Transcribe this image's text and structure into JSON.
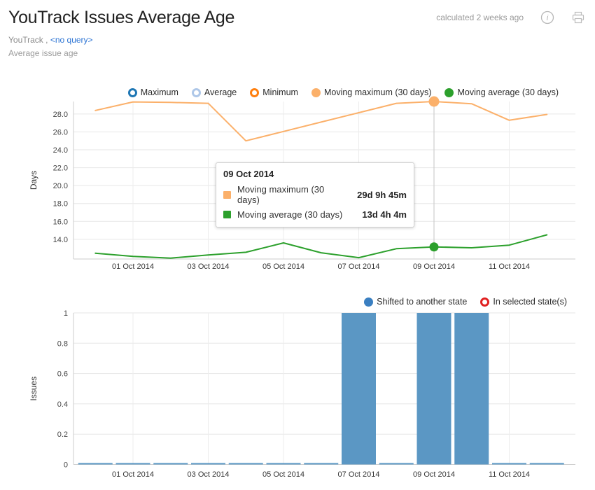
{
  "header": {
    "title": "YouTrack Issues Average Age",
    "calculated": "calculated 2 weeks ago",
    "icons": [
      "info-icon",
      "print-icon"
    ]
  },
  "subtitle": {
    "source": "YouTrack ,",
    "query_link": "<no query>",
    "description": "Average issue age"
  },
  "tooltip": {
    "title": "09 Oct 2014",
    "rows": [
      {
        "label": "Moving maximum (30 days)",
        "value": "29d 9h 45m",
        "color": "#fbb06a"
      },
      {
        "label": "Moving average (30 days)",
        "value": "13d 4h 4m",
        "color": "#2ca02c"
      }
    ]
  },
  "colors": {
    "maximum": "#1f77b4",
    "average": "#aec7e8",
    "minimum": "#ff7f0e",
    "moving_maximum": "#fbb06a",
    "moving_average": "#2ca02c",
    "bar_blue": "#5b97c4",
    "legend_blue": "#3a7fc1",
    "selected_red": "#e02020",
    "grid": "#e6e6e6",
    "axis": "#cccccc"
  },
  "chart_data": [
    {
      "type": "line",
      "title": "",
      "xlabel": "",
      "ylabel": "Days",
      "ylim": [
        11.8,
        29.4
      ],
      "yticks": [
        14,
        16,
        18,
        20,
        22,
        24,
        26,
        28
      ],
      "grid": true,
      "legend_position": "top",
      "x": [
        "30 Sep 2014",
        "01 Oct 2014",
        "02 Oct 2014",
        "03 Oct 2014",
        "04 Oct 2014",
        "05 Oct 2014",
        "06 Oct 2014",
        "07 Oct 2014",
        "08 Oct 2014",
        "09 Oct 2014",
        "10 Oct 2014",
        "11 Oct 2014",
        "12 Oct 2014"
      ],
      "x_tick_indices": [
        1,
        3,
        5,
        7,
        9,
        11
      ],
      "x_tick_labels": [
        "01 Oct 2014",
        "03 Oct 2014",
        "05 Oct 2014",
        "07 Oct 2014",
        "09 Oct 2014",
        "11 Oct 2014"
      ],
      "legend": [
        {
          "label": "Maximum",
          "marker": "ring",
          "color": "#1f77b4"
        },
        {
          "label": "Average",
          "marker": "ring",
          "color": "#aec7e8"
        },
        {
          "label": "Minimum",
          "marker": "ring",
          "color": "#ff7f0e"
        },
        {
          "label": "Moving maximum (30 days)",
          "marker": "dot",
          "color": "#fbb06a"
        },
        {
          "label": "Moving average (30 days)",
          "marker": "dot",
          "color": "#2ca02c"
        }
      ],
      "series": [
        {
          "name": "Moving maximum (30 days)",
          "color": "#fbb06a",
          "values": [
            28.4,
            29.35,
            29.3,
            29.2,
            25.0,
            26.05,
            27.1,
            28.15,
            29.2,
            29.4,
            29.15,
            27.3,
            27.95
          ]
        },
        {
          "name": "Moving average (30 days)",
          "color": "#2ca02c",
          "values": [
            12.45,
            12.1,
            11.9,
            12.25,
            12.55,
            13.6,
            12.5,
            11.95,
            12.95,
            13.15,
            13.05,
            13.35,
            14.5
          ]
        }
      ],
      "highlight": {
        "index": 9,
        "date": "09 Oct 2014",
        "values": {
          "Moving maximum (30 days)": "29d 9h 45m",
          "Moving average (30 days)": "13d 4h 4m"
        }
      }
    },
    {
      "type": "bar",
      "title": "",
      "xlabel": "",
      "ylabel": "Issues",
      "ylim": [
        0,
        1
      ],
      "yticks": [
        0,
        0.2,
        0.4,
        0.6,
        0.8,
        1
      ],
      "grid": true,
      "legend_position": "top-right",
      "x": [
        "30 Sep 2014",
        "01 Oct 2014",
        "02 Oct 2014",
        "03 Oct 2014",
        "04 Oct 2014",
        "05 Oct 2014",
        "06 Oct 2014",
        "07 Oct 2014",
        "08 Oct 2014",
        "09 Oct 2014",
        "10 Oct 2014",
        "11 Oct 2014",
        "12 Oct 2014"
      ],
      "x_tick_indices": [
        1,
        3,
        5,
        7,
        9,
        11
      ],
      "x_tick_labels": [
        "01 Oct 2014",
        "03 Oct 2014",
        "05 Oct 2014",
        "07 Oct 2014",
        "09 Oct 2014",
        "11 Oct 2014"
      ],
      "legend": [
        {
          "label": "Shifted to another state",
          "marker": "dot",
          "color": "#3a7fc1"
        },
        {
          "label": "In selected state(s)",
          "marker": "ring",
          "color": "#e02020"
        }
      ],
      "series": [
        {
          "name": "Shifted to another state",
          "color": "#5b97c4",
          "values": [
            0,
            0,
            0,
            0,
            0,
            0,
            0,
            1,
            0,
            1,
            1,
            0,
            0
          ]
        },
        {
          "name": "In selected state(s)",
          "color": "#e02020",
          "values": []
        }
      ]
    }
  ]
}
